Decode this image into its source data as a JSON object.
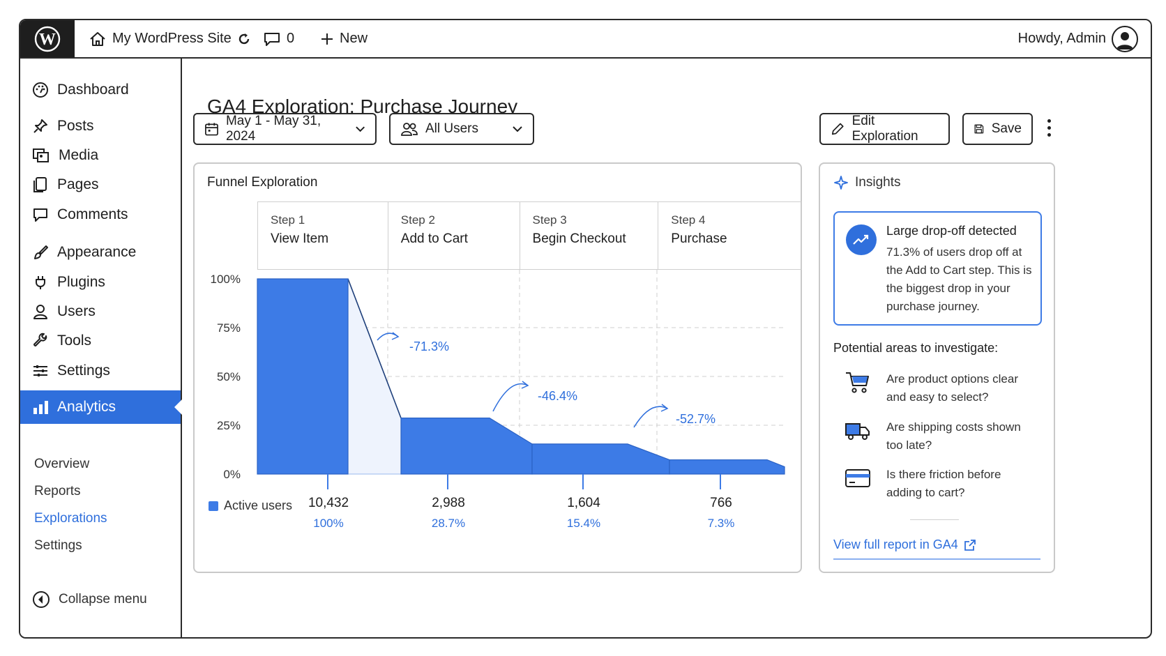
{
  "adminbar": {
    "site_name": "My WordPress Site",
    "comments_count": "0",
    "new_label": "New",
    "howdy": "Howdy, Admin",
    "icons": [
      "wordpress-logo-icon",
      "home-icon",
      "refresh-icon",
      "comment-icon",
      "plus-icon",
      "avatar-icon"
    ]
  },
  "sidebar": {
    "items": [
      {
        "label": "Dashboard",
        "icon": "dashboard-icon"
      },
      {
        "label": "Posts",
        "icon": "pin-icon"
      },
      {
        "label": "Media",
        "icon": "media-icon"
      },
      {
        "label": "Pages",
        "icon": "pages-icon"
      },
      {
        "label": "Comments",
        "icon": "comment-icon"
      },
      {
        "label": "Appearance",
        "icon": "brush-icon"
      },
      {
        "label": "Plugins",
        "icon": "plug-icon"
      },
      {
        "label": "Users",
        "icon": "user-icon"
      },
      {
        "label": "Tools",
        "icon": "wrench-icon"
      },
      {
        "label": "Settings",
        "icon": "sliders-icon"
      },
      {
        "label": "Analytics",
        "icon": "bar-chart-icon"
      }
    ],
    "submenu": [
      "Overview",
      "Reports",
      "Explorations",
      "Settings"
    ],
    "collapse_label": "Collapse menu"
  },
  "header": {
    "title_strong": "GA4 Exploration:",
    "title_rest": "Purchase Journey",
    "date_range": "May 1 - May 31, 2024",
    "segment": "All Users",
    "edit_label": "Edit Exploration",
    "save_label": "Save"
  },
  "funnel": {
    "title": "Funnel Exploration",
    "steps": [
      {
        "num": "Step 1",
        "name": "View Item"
      },
      {
        "num": "Step 2",
        "name": "Add to Cart"
      },
      {
        "num": "Step 3",
        "name": "Begin Checkout"
      },
      {
        "num": "Step 4",
        "name": "Purchase"
      }
    ],
    "legend": "Active users",
    "totals": [
      {
        "value": "10,432",
        "pct": "100%"
      },
      {
        "value": "2,988",
        "pct": "28.7%"
      },
      {
        "value": "1,604",
        "pct": "15.4%"
      },
      {
        "value": "766",
        "pct": "7.3%"
      }
    ],
    "dropoffs": [
      "-71.3%",
      "-46.4%",
      "-52.7%"
    ]
  },
  "chart_data": {
    "type": "bar",
    "categories": [
      "View Item",
      "Add to Cart",
      "Begin Checkout",
      "Purchase"
    ],
    "series": [
      {
        "name": "Active users",
        "values": [
          100,
          28.7,
          15.4,
          7.3
        ]
      }
    ],
    "yticks": [
      "100%",
      "75%",
      "50%",
      "25%",
      "0%"
    ],
    "ylim": [
      0,
      100
    ],
    "grid": true,
    "color": "#3d7be6"
  },
  "insights": {
    "title": "Insights",
    "alert_head": "Large drop-off detected",
    "alert_body": "71.3% of users drop off at the Add to Cart step. This is the biggest drop in your purchase journey.",
    "investigate_title": "Potential areas to investigate:",
    "items": [
      {
        "text": "Are product options clear and easy to select?",
        "icon": "cart-icon"
      },
      {
        "text": "Are shipping costs shown too late?",
        "icon": "truck-icon"
      },
      {
        "text": "Is there friction before adding to cart?",
        "icon": "credit-card-icon"
      }
    ],
    "link_label": "View full report in GA4"
  }
}
